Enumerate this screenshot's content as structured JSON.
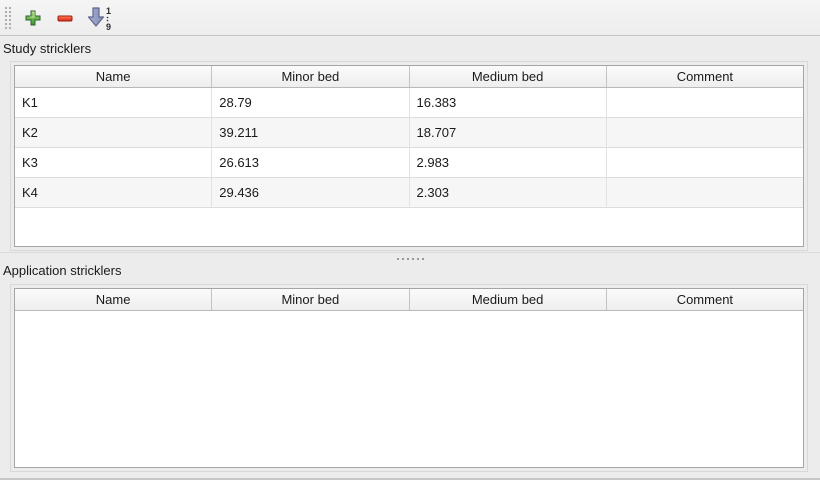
{
  "toolbar": {
    "add_button": {
      "icon": "plus-icon",
      "label": "Add"
    },
    "remove_button": {
      "icon": "minus-icon",
      "label": "Remove"
    },
    "sort_button": {
      "icon": "sort-ascending-icon",
      "digit_top": "1",
      "digit_bottom": "9"
    }
  },
  "study_section": {
    "title": "Study stricklers",
    "table": {
      "columns": [
        "Name",
        "Minor bed",
        "Medium bed",
        "Comment"
      ],
      "keys": [
        "name",
        "minor_bed",
        "medium_bed",
        "comment"
      ],
      "rows": [
        {
          "name": "K1",
          "minor_bed": "28.79",
          "medium_bed": "16.383",
          "comment": ""
        },
        {
          "name": "K2",
          "minor_bed": "39.211",
          "medium_bed": "18.707",
          "comment": ""
        },
        {
          "name": "K3",
          "minor_bed": "26.613",
          "medium_bed": "2.983",
          "comment": ""
        },
        {
          "name": "K4",
          "minor_bed": "29.436",
          "medium_bed": "2.303",
          "comment": ""
        }
      ]
    }
  },
  "application_section": {
    "title": "Application stricklers",
    "table": {
      "columns": [
        "Name",
        "Minor bed",
        "Medium bed",
        "Comment"
      ],
      "keys": [
        "name",
        "minor_bed",
        "medium_bed",
        "comment"
      ],
      "rows": []
    }
  },
  "colors": {
    "window_bg": "#ececec",
    "add_green": "#4a9e3f",
    "remove_red": "#d5311e",
    "sort_blue": "#97a1c7",
    "alt_row": "#f6f6f6",
    "table_border": "#a5a5a5"
  }
}
